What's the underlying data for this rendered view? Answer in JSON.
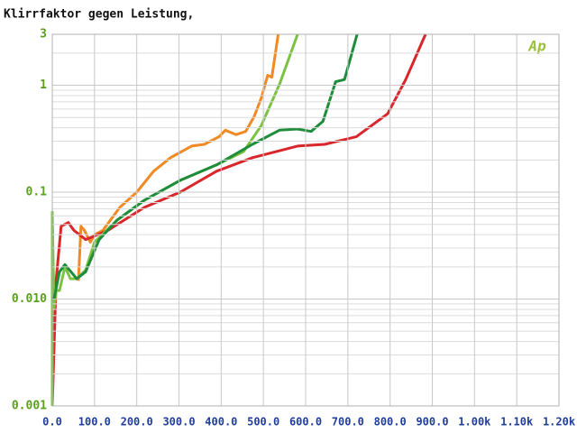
{
  "chart_data": {
    "type": "line",
    "title": "Klirrfaktor gegen Leistung,",
    "logo": "Ap",
    "ylog": true,
    "grid": true,
    "xlim": [
      0,
      1200
    ],
    "ylim": [
      0.001,
      3
    ],
    "xticks": [
      {
        "value": 0,
        "label": "0.0"
      },
      {
        "value": 100,
        "label": "100.0"
      },
      {
        "value": 200,
        "label": "200.0"
      },
      {
        "value": 300,
        "label": "300.0"
      },
      {
        "value": 400,
        "label": "400.0"
      },
      {
        "value": 500,
        "label": "500.0"
      },
      {
        "value": 600,
        "label": "600.0"
      },
      {
        "value": 700,
        "label": "700.0"
      },
      {
        "value": 800,
        "label": "800.0"
      },
      {
        "value": 900,
        "label": "900.0"
      },
      {
        "value": 1000,
        "label": "1.00k"
      },
      {
        "value": 1100,
        "label": "1.10k"
      },
      {
        "value": 1200,
        "label": "1.20k"
      }
    ],
    "yticks": [
      0.001,
      {
        "value": 0.01,
        "label": "0.010"
      },
      0.1,
      1,
      3
    ],
    "minor_yticks": [
      0.002,
      0.003,
      0.004,
      0.005,
      0.006,
      0.007,
      0.008,
      0.009,
      0.02,
      0.03,
      0.04,
      0.05,
      0.06,
      0.07,
      0.08,
      0.09,
      0.2,
      0.3,
      0.4,
      0.5,
      0.6,
      0.7,
      0.8,
      0.9,
      2
    ],
    "series": [
      {
        "color": "#f08a24",
        "x": [
          62,
          68,
          76,
          90,
          100,
          120,
          160,
          200,
          240,
          280,
          330,
          360,
          395,
          410,
          435,
          458,
          478,
          495,
          510,
          520,
          535
        ],
        "values": [
          0.0148,
          0.048,
          0.044,
          0.034,
          0.04,
          0.044,
          0.072,
          0.1,
          0.157,
          0.21,
          0.27,
          0.28,
          0.33,
          0.38,
          0.345,
          0.37,
          0.51,
          0.76,
          1.24,
          1.19,
          3
        ]
      },
      {
        "color": "#d8262a",
        "x": [
          0,
          9,
          21,
          38,
          51,
          79,
          132,
          218,
          303,
          389,
          474,
          581,
          645,
          720,
          794,
          837,
          884
        ],
        "values": [
          0.001,
          0.0148,
          0.048,
          0.052,
          0.044,
          0.036,
          0.044,
          0.072,
          0.1,
          0.157,
          0.21,
          0.27,
          0.28,
          0.33,
          0.54,
          1.13,
          3
        ]
      },
      {
        "color": "#7cc242",
        "x": [
          0,
          0,
          4,
          9,
          17,
          30,
          43,
          58,
          79,
          100,
          154,
          218,
          303,
          389,
          453,
          495,
          538,
          581
        ],
        "values": [
          0.001,
          0.065,
          0.0082,
          0.012,
          0.012,
          0.02,
          0.0155,
          0.0155,
          0.0187,
          0.034,
          0.055,
          0.084,
          0.129,
          0.18,
          0.24,
          0.42,
          1.02,
          3
        ]
      },
      {
        "color": "#1e8c3a",
        "x": [
          4,
          17,
          30,
          58,
          79,
          111,
          154,
          218,
          303,
          389,
          474,
          538,
          581,
          613,
          641,
          671,
          692,
          722
        ],
        "values": [
          0.01,
          0.018,
          0.021,
          0.0155,
          0.018,
          0.036,
          0.055,
          0.084,
          0.129,
          0.18,
          0.28,
          0.38,
          0.39,
          0.37,
          0.46,
          1.08,
          1.13,
          3
        ]
      }
    ]
  }
}
